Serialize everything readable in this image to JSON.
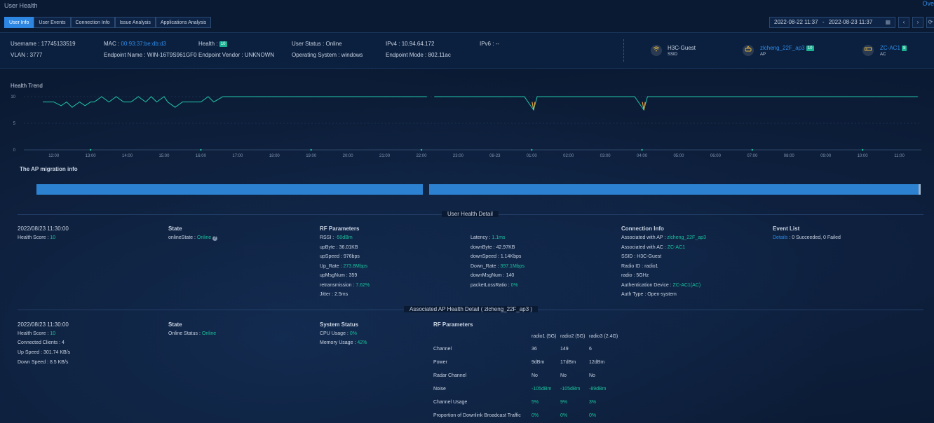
{
  "page": {
    "title": "User Health",
    "corner_link": "Ove"
  },
  "tabs": [
    {
      "label": "User Info",
      "active": true
    },
    {
      "label": "User Events"
    },
    {
      "label": "Connection Info"
    },
    {
      "label": "Issue Analysis"
    },
    {
      "label": "Applications Analysis"
    }
  ],
  "date_range": {
    "start": "2022-08-22 11:37",
    "sep": "-",
    "end": "2022-08-23 11:37"
  },
  "nav": {
    "prev": "‹",
    "next": "›",
    "refresh": "⟳"
  },
  "user": {
    "username_label": "Username :",
    "username": "17745133519",
    "vlan_label": "VLAN :",
    "vlan": "3777",
    "mac_label": "MAC :",
    "mac": "00:93:37:be:db:d3",
    "endpoint_name_label": "Endpoint Name :",
    "endpoint_name": "WIN-16T9S961GF0",
    "health_label": "Health :",
    "health": "10",
    "endpoint_vendor_label": "Endpoint Vendor :",
    "endpoint_vendor": "UNKNOWN",
    "status_label": "User Status :",
    "status": "Online",
    "os_label": "Operating System :",
    "os": "windows",
    "ipv4_label": "IPv4 :",
    "ipv4": "10.94.64.172",
    "mode_label": "Endpoint Mode :",
    "mode": "802.11ac",
    "ipv6_label": "IPv6 :",
    "ipv6": "--"
  },
  "devices": [
    {
      "name": "H3C-Guest",
      "type": "SSID",
      "icon": "wifi-icon",
      "badge": ""
    },
    {
      "name": "zlcheng_22F_ap3",
      "type": "AP",
      "icon": "ap-icon",
      "badge": "10"
    },
    {
      "name": "ZC-AC1",
      "type": "AC",
      "icon": "ac-icon",
      "badge": "8"
    }
  ],
  "health_trend": {
    "title": "Health Trend"
  },
  "chart_data": {
    "type": "line",
    "y_ticks": [
      "10",
      "5",
      "0"
    ],
    "ylim": [
      0,
      10
    ],
    "x_ticks": [
      "12:00",
      "13:00",
      "14:00",
      "15:00",
      "16:00",
      "17:00",
      "18:00",
      "19:00",
      "20:00",
      "21:00",
      "22:00",
      "23:00",
      "08-23",
      "01:00",
      "02:00",
      "03:00",
      "04:00",
      "05:00",
      "06:00",
      "07:00",
      "08:00",
      "09:00",
      "10:00",
      "11:00"
    ],
    "series": [
      {
        "values_by_hour": "approx",
        "segments": [
          [
            [
              11.7,
              9
            ],
            [
              12.0,
              9
            ],
            [
              12.2,
              8.3
            ],
            [
              12.35,
              9
            ],
            [
              12.5,
              8
            ],
            [
              12.7,
              9
            ],
            [
              12.85,
              8.3
            ],
            [
              13.0,
              9
            ],
            [
              13.1,
              9
            ],
            [
              13.3,
              10
            ],
            [
              13.5,
              9
            ],
            [
              13.7,
              10
            ],
            [
              13.9,
              9
            ],
            [
              14.1,
              9
            ],
            [
              14.3,
              10
            ],
            [
              14.5,
              9
            ],
            [
              14.65,
              10
            ],
            [
              14.8,
              9
            ],
            [
              15.0,
              10
            ],
            [
              15.1,
              9
            ],
            [
              15.3,
              8
            ],
            [
              15.5,
              9
            ],
            [
              16.0,
              9
            ],
            [
              16.2,
              10
            ],
            [
              16.35,
              9
            ],
            [
              16.6,
              10
            ],
            [
              16.8,
              10
            ],
            [
              18.0,
              10
            ],
            [
              20.0,
              10
            ],
            [
              22.15,
              10
            ]
          ],
          [
            [
              22.35,
              10
            ],
            [
              24.8,
              10
            ],
            [
              25.05,
              7.5
            ],
            [
              25.15,
              10
            ],
            [
              27.8,
              10
            ],
            [
              28.05,
              7.5
            ],
            [
              28.15,
              10
            ],
            [
              35.5,
              10
            ]
          ]
        ],
        "dips": [
          [
            25.05,
            7.5
          ],
          [
            28.05,
            7.5
          ]
        ]
      }
    ]
  },
  "migration": {
    "title": "The AP migration info"
  },
  "user_health_detail": {
    "title": "User Health Detail",
    "time": "2022/08/23 11:30:00",
    "health_score_label": "Health Score :",
    "health_score": "10",
    "state_title": "State",
    "online_state_label": "onlineState :",
    "online_state": "Online",
    "rf_title": "RF Parameters",
    "rf_left": [
      {
        "label": "RSSI :",
        "value": "-50dBm",
        "green": true
      },
      {
        "label": "upByte :",
        "value": "36.01KB"
      },
      {
        "label": "upSpeed :",
        "value": "976bps"
      },
      {
        "label": "Up_Rate :",
        "value": "273.8Mbps",
        "green": true
      },
      {
        "label": "upMsgNum :",
        "value": "359"
      },
      {
        "label": "retransmission :",
        "value": "7.62%",
        "green": true
      },
      {
        "label": "Jitter :",
        "value": "2.5ms"
      }
    ],
    "rf_right": [
      {
        "label": "Latency :",
        "value": "1.1ms",
        "green": true
      },
      {
        "label": "downByte :",
        "value": "42.97KB"
      },
      {
        "label": "downSpeed :",
        "value": "1.14Kbps"
      },
      {
        "label": "Down_Rate :",
        "value": "397.1Mbps",
        "green": true
      },
      {
        "label": "downMsgNum :",
        "value": "140"
      },
      {
        "label": "packetLossRatio :",
        "value": "0%",
        "green": true
      }
    ],
    "conn_title": "Connection Info",
    "conn": [
      {
        "label": "Associated with AP :",
        "value": "zlcheng_22F_ap3",
        "green": true
      },
      {
        "label": "Associated with AC :",
        "value": "ZC-AC1",
        "green": true
      },
      {
        "label": "SSID :",
        "value": "H3C-Guest"
      },
      {
        "label": "Radio ID :",
        "value": "radio1"
      },
      {
        "label": "radio :",
        "value": "5GHz"
      },
      {
        "label": "Authentication Device :",
        "value": "ZC-AC1(AC)",
        "green": true
      },
      {
        "label": "Auth Type :",
        "value": "Open-system"
      }
    ],
    "event_title": "Event List",
    "event_details": "Details",
    "event_text": ": 0 Succeeded, 0 Failed"
  },
  "ap_health_detail": {
    "title": "Associated AP Health Detail ( zlcheng_22F_ap3 )",
    "time": "2022/08/23 11:30:00",
    "health_score_label": "Health Score :",
    "health_score": "10",
    "clients_label": "Connected Clients :",
    "clients": "4",
    "up_label": "Up Speed :",
    "up": "301.74 KB/s",
    "down_label": "Down Speed :",
    "down": "8.5 KB/s",
    "state_title": "State",
    "online_label": "Online Status :",
    "online": "Online",
    "sys_title": "System Status",
    "cpu_label": "CPU Usage :",
    "cpu": "0%",
    "mem_label": "Memory Usage :",
    "mem": "42%",
    "rf_title": "RF Parameters",
    "radio_headers": [
      "radio1 (5G)",
      "radio2 (5G)",
      "radio3 (2.4G)"
    ],
    "rows": [
      {
        "label": "Channel",
        "values": [
          "36",
          "149",
          "6"
        ]
      },
      {
        "label": "Power",
        "values": [
          "9dBm",
          "17dBm",
          "12dBm"
        ]
      },
      {
        "label": "Radar Channel",
        "values": [
          "No",
          "No",
          "No"
        ]
      },
      {
        "label": "Noise",
        "values": [
          "-105dBm",
          "-105dBm",
          "-89dBm"
        ],
        "green": true
      },
      {
        "label": "Channel Usage",
        "values": [
          "5%",
          "9%",
          "3%"
        ],
        "green": true
      },
      {
        "label": "Proportion of Downlink Broadcast Traffic",
        "values": [
          "0%",
          "0%",
          "0%"
        ],
        "green": true
      }
    ]
  }
}
